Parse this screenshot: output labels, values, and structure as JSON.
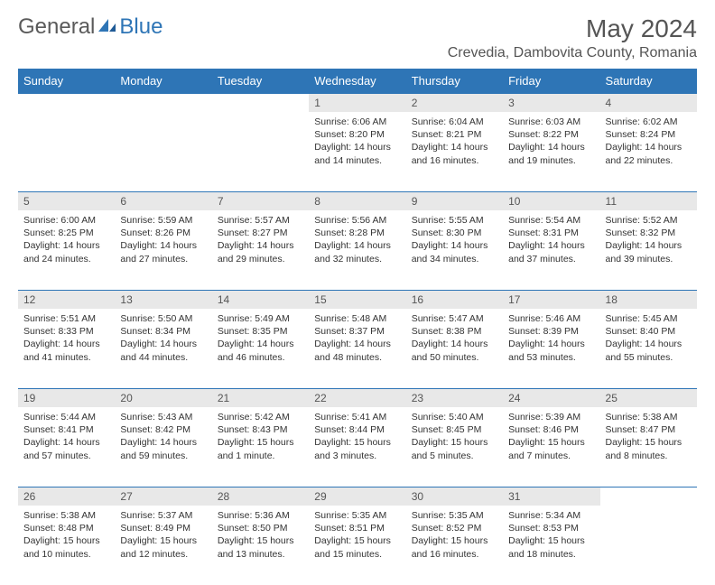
{
  "logo": {
    "general": "General",
    "blue": "Blue"
  },
  "title": "May 2024",
  "location": "Crevedia, Dambovita County, Romania",
  "colors": {
    "header_bg": "#2e75b6",
    "header_text": "#ffffff",
    "daynum_bg": "#e8e8e8",
    "divider": "#2e75b6",
    "body_text": "#333333"
  },
  "weekdays": [
    "Sunday",
    "Monday",
    "Tuesday",
    "Wednesday",
    "Thursday",
    "Friday",
    "Saturday"
  ],
  "weeks": [
    [
      null,
      null,
      null,
      {
        "n": "1",
        "sr": "6:06 AM",
        "ss": "8:20 PM",
        "dl": "14 hours and 14 minutes."
      },
      {
        "n": "2",
        "sr": "6:04 AM",
        "ss": "8:21 PM",
        "dl": "14 hours and 16 minutes."
      },
      {
        "n": "3",
        "sr": "6:03 AM",
        "ss": "8:22 PM",
        "dl": "14 hours and 19 minutes."
      },
      {
        "n": "4",
        "sr": "6:02 AM",
        "ss": "8:24 PM",
        "dl": "14 hours and 22 minutes."
      }
    ],
    [
      {
        "n": "5",
        "sr": "6:00 AM",
        "ss": "8:25 PM",
        "dl": "14 hours and 24 minutes."
      },
      {
        "n": "6",
        "sr": "5:59 AM",
        "ss": "8:26 PM",
        "dl": "14 hours and 27 minutes."
      },
      {
        "n": "7",
        "sr": "5:57 AM",
        "ss": "8:27 PM",
        "dl": "14 hours and 29 minutes."
      },
      {
        "n": "8",
        "sr": "5:56 AM",
        "ss": "8:28 PM",
        "dl": "14 hours and 32 minutes."
      },
      {
        "n": "9",
        "sr": "5:55 AM",
        "ss": "8:30 PM",
        "dl": "14 hours and 34 minutes."
      },
      {
        "n": "10",
        "sr": "5:54 AM",
        "ss": "8:31 PM",
        "dl": "14 hours and 37 minutes."
      },
      {
        "n": "11",
        "sr": "5:52 AM",
        "ss": "8:32 PM",
        "dl": "14 hours and 39 minutes."
      }
    ],
    [
      {
        "n": "12",
        "sr": "5:51 AM",
        "ss": "8:33 PM",
        "dl": "14 hours and 41 minutes."
      },
      {
        "n": "13",
        "sr": "5:50 AM",
        "ss": "8:34 PM",
        "dl": "14 hours and 44 minutes."
      },
      {
        "n": "14",
        "sr": "5:49 AM",
        "ss": "8:35 PM",
        "dl": "14 hours and 46 minutes."
      },
      {
        "n": "15",
        "sr": "5:48 AM",
        "ss": "8:37 PM",
        "dl": "14 hours and 48 minutes."
      },
      {
        "n": "16",
        "sr": "5:47 AM",
        "ss": "8:38 PM",
        "dl": "14 hours and 50 minutes."
      },
      {
        "n": "17",
        "sr": "5:46 AM",
        "ss": "8:39 PM",
        "dl": "14 hours and 53 minutes."
      },
      {
        "n": "18",
        "sr": "5:45 AM",
        "ss": "8:40 PM",
        "dl": "14 hours and 55 minutes."
      }
    ],
    [
      {
        "n": "19",
        "sr": "5:44 AM",
        "ss": "8:41 PM",
        "dl": "14 hours and 57 minutes."
      },
      {
        "n": "20",
        "sr": "5:43 AM",
        "ss": "8:42 PM",
        "dl": "14 hours and 59 minutes."
      },
      {
        "n": "21",
        "sr": "5:42 AM",
        "ss": "8:43 PM",
        "dl": "15 hours and 1 minute."
      },
      {
        "n": "22",
        "sr": "5:41 AM",
        "ss": "8:44 PM",
        "dl": "15 hours and 3 minutes."
      },
      {
        "n": "23",
        "sr": "5:40 AM",
        "ss": "8:45 PM",
        "dl": "15 hours and 5 minutes."
      },
      {
        "n": "24",
        "sr": "5:39 AM",
        "ss": "8:46 PM",
        "dl": "15 hours and 7 minutes."
      },
      {
        "n": "25",
        "sr": "5:38 AM",
        "ss": "8:47 PM",
        "dl": "15 hours and 8 minutes."
      }
    ],
    [
      {
        "n": "26",
        "sr": "5:38 AM",
        "ss": "8:48 PM",
        "dl": "15 hours and 10 minutes."
      },
      {
        "n": "27",
        "sr": "5:37 AM",
        "ss": "8:49 PM",
        "dl": "15 hours and 12 minutes."
      },
      {
        "n": "28",
        "sr": "5:36 AM",
        "ss": "8:50 PM",
        "dl": "15 hours and 13 minutes."
      },
      {
        "n": "29",
        "sr": "5:35 AM",
        "ss": "8:51 PM",
        "dl": "15 hours and 15 minutes."
      },
      {
        "n": "30",
        "sr": "5:35 AM",
        "ss": "8:52 PM",
        "dl": "15 hours and 16 minutes."
      },
      {
        "n": "31",
        "sr": "5:34 AM",
        "ss": "8:53 PM",
        "dl": "15 hours and 18 minutes."
      },
      null
    ]
  ],
  "labels": {
    "sunrise": "Sunrise: ",
    "sunset": "Sunset: ",
    "daylight": "Daylight: "
  }
}
